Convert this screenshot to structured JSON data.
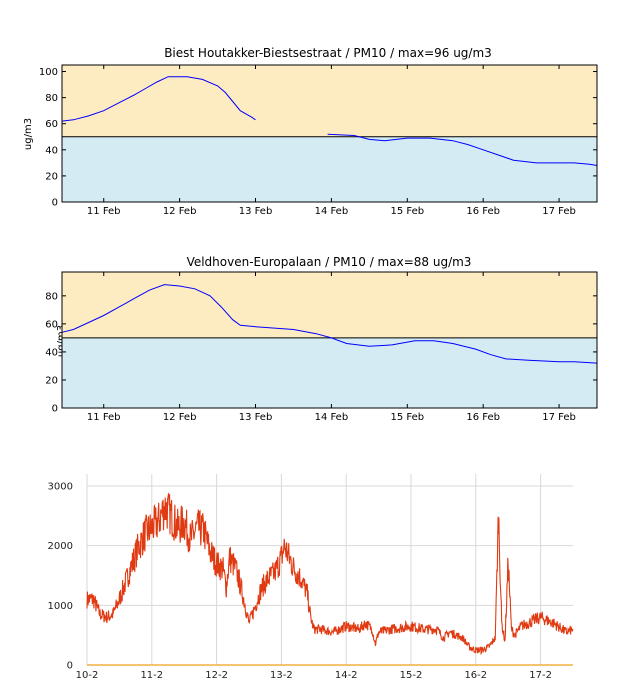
{
  "chart_data": [
    {
      "type": "line",
      "title": "Biest Houtakker-Biestsestraat   /   PM10   /   max=96 ug/m3",
      "ylabel": "ug/m3",
      "ylim": [
        0,
        105
      ],
      "xlim": [
        10.45,
        17.5
      ],
      "yticks": [
        0,
        20,
        40,
        60,
        80,
        100
      ],
      "xticks": [
        {
          "x": 11,
          "label": "11 Feb"
        },
        {
          "x": 12,
          "label": "12 Feb"
        },
        {
          "x": 13,
          "label": "13 Feb"
        },
        {
          "x": 14,
          "label": "14 Feb"
        },
        {
          "x": 15,
          "label": "15 Feb"
        },
        {
          "x": 16,
          "label": "16 Feb"
        },
        {
          "x": 17,
          "label": "17 Feb"
        }
      ],
      "threshold": 50,
      "colors": {
        "above": "#fdebc2",
        "below": "#d4ebf4",
        "line": "#0000ff",
        "threshold": "#000000"
      },
      "series": [
        {
          "segments": [
            [
              [
                10.45,
                62
              ],
              [
                10.6,
                63
              ],
              [
                10.8,
                66
              ],
              [
                11.0,
                70
              ],
              [
                11.2,
                76
              ],
              [
                11.4,
                82
              ],
              [
                11.55,
                87
              ],
              [
                11.7,
                92
              ],
              [
                11.85,
                96
              ],
              [
                12.1,
                96
              ],
              [
                12.3,
                94
              ],
              [
                12.5,
                89
              ],
              [
                12.6,
                84
              ],
              [
                12.7,
                77
              ],
              [
                12.8,
                70
              ],
              [
                12.95,
                65
              ],
              [
                13.0,
                63
              ]
            ],
            [
              [
                13.95,
                52
              ],
              [
                14.3,
                51
              ],
              [
                14.5,
                48
              ],
              [
                14.7,
                47
              ],
              [
                15.0,
                49
              ],
              [
                15.3,
                49
              ],
              [
                15.6,
                47
              ],
              [
                15.8,
                44
              ],
              [
                16.0,
                40
              ],
              [
                16.2,
                36
              ],
              [
                16.4,
                32
              ],
              [
                16.7,
                30
              ],
              [
                17.0,
                30
              ],
              [
                17.2,
                30
              ],
              [
                17.4,
                29
              ],
              [
                17.5,
                28
              ]
            ]
          ]
        }
      ]
    },
    {
      "type": "line",
      "title": "Veldhoven-Europalaan   /   PM10   /   max=88 ug/m3",
      "ylabel": "ug/m3",
      "ylim": [
        0,
        97
      ],
      "xlim": [
        10.45,
        17.5
      ],
      "yticks": [
        0,
        20,
        40,
        60,
        80
      ],
      "xticks": [
        {
          "x": 11,
          "label": "11 Feb"
        },
        {
          "x": 12,
          "label": "12 Feb"
        },
        {
          "x": 13,
          "label": "13 Feb"
        },
        {
          "x": 14,
          "label": "14 Feb"
        },
        {
          "x": 15,
          "label": "15 Feb"
        },
        {
          "x": 16,
          "label": "16 Feb"
        },
        {
          "x": 17,
          "label": "17 Feb"
        }
      ],
      "threshold": 50,
      "colors": {
        "above": "#fdebc2",
        "below": "#d4ebf4",
        "line": "#0000ff",
        "threshold": "#000000"
      },
      "series": [
        {
          "segments": [
            [
              [
                10.45,
                54
              ],
              [
                10.6,
                56
              ],
              [
                10.8,
                61
              ],
              [
                11.0,
                66
              ],
              [
                11.2,
                72
              ],
              [
                11.4,
                78
              ],
              [
                11.6,
                84
              ],
              [
                11.8,
                88
              ],
              [
                12.0,
                87
              ],
              [
                12.2,
                85
              ],
              [
                12.4,
                80
              ],
              [
                12.55,
                72
              ],
              [
                12.7,
                63
              ],
              [
                12.8,
                59
              ],
              [
                13.0,
                58
              ],
              [
                13.5,
                56
              ],
              [
                13.8,
                53
              ],
              [
                14.0,
                50
              ],
              [
                14.2,
                46
              ],
              [
                14.5,
                44
              ],
              [
                14.8,
                45
              ],
              [
                15.1,
                48
              ],
              [
                15.35,
                48
              ],
              [
                15.6,
                46
              ],
              [
                15.9,
                42
              ],
              [
                16.1,
                38
              ],
              [
                16.3,
                35
              ],
              [
                16.6,
                34
              ],
              [
                17.0,
                33
              ],
              [
                17.2,
                33
              ],
              [
                17.5,
                32
              ]
            ]
          ]
        }
      ]
    },
    {
      "type": "line",
      "ylim": [
        0,
        3200
      ],
      "xlim": [
        10.0,
        17.5
      ],
      "yticks": [
        0,
        1000,
        2000,
        3000
      ],
      "xticks": [
        {
          "x": 10,
          "label": "10-2"
        },
        {
          "x": 11,
          "label": "11-2"
        },
        {
          "x": 12,
          "label": "12-2"
        },
        {
          "x": 13,
          "label": "13-2"
        },
        {
          "x": 14,
          "label": "14-2"
        },
        {
          "x": 15,
          "label": "15-2"
        },
        {
          "x": 16,
          "label": "16-2"
        },
        {
          "x": 17,
          "label": "17-2"
        }
      ],
      "grid": true,
      "colors": {
        "line": "#e03a12",
        "grid": "#d8d8d8",
        "baseline": "#f0b040"
      },
      "series": [
        {
          "points": [
            [
              10.0,
              1100
            ],
            [
              10.1,
              1100
            ],
            [
              10.2,
              850
            ],
            [
              10.3,
              800
            ],
            [
              10.4,
              850
            ],
            [
              10.5,
              1100
            ],
            [
              10.6,
              1400
            ],
            [
              10.7,
              1700
            ],
            [
              10.8,
              2000
            ],
            [
              10.9,
              2200
            ],
            [
              11.0,
              2300
            ],
            [
              11.1,
              2400
            ],
            [
              11.2,
              2650
            ],
            [
              11.3,
              2500
            ],
            [
              11.4,
              2300
            ],
            [
              11.5,
              2400
            ],
            [
              11.6,
              2100
            ],
            [
              11.7,
              2300
            ],
            [
              11.8,
              2250
            ],
            [
              11.9,
              1900
            ],
            [
              12.0,
              1700
            ],
            [
              12.1,
              1600
            ],
            [
              12.15,
              1300
            ],
            [
              12.2,
              1800
            ],
            [
              12.3,
              1600
            ],
            [
              12.4,
              1200
            ],
            [
              12.5,
              700
            ],
            [
              12.6,
              1000
            ],
            [
              12.7,
              1300
            ],
            [
              12.8,
              1450
            ],
            [
              12.9,
              1550
            ],
            [
              13.0,
              1800
            ],
            [
              13.05,
              2000
            ],
            [
              13.1,
              1850
            ],
            [
              13.2,
              1600
            ],
            [
              13.3,
              1450
            ],
            [
              13.4,
              1200
            ],
            [
              13.45,
              800
            ],
            [
              13.5,
              600
            ],
            [
              13.6,
              600
            ],
            [
              13.8,
              550
            ],
            [
              14.0,
              650
            ],
            [
              14.2,
              600
            ],
            [
              14.3,
              700
            ],
            [
              14.4,
              600
            ],
            [
              14.45,
              350
            ],
            [
              14.5,
              550
            ],
            [
              14.7,
              600
            ],
            [
              15.0,
              650
            ],
            [
              15.2,
              600
            ],
            [
              15.4,
              600
            ],
            [
              15.5,
              450
            ],
            [
              15.6,
              550
            ],
            [
              15.7,
              500
            ],
            [
              15.8,
              450
            ],
            [
              15.9,
              300
            ],
            [
              16.0,
              250
            ],
            [
              16.1,
              250
            ],
            [
              16.2,
              300
            ],
            [
              16.3,
              450
            ],
            [
              16.35,
              2550
            ],
            [
              16.4,
              700
            ],
            [
              16.45,
              400
            ],
            [
              16.5,
              1750
            ],
            [
              16.55,
              600
            ],
            [
              16.6,
              500
            ],
            [
              16.7,
              650
            ],
            [
              16.8,
              700
            ],
            [
              17.0,
              800
            ],
            [
              17.2,
              700
            ],
            [
              17.4,
              550
            ],
            [
              17.5,
              600
            ]
          ]
        }
      ]
    }
  ]
}
